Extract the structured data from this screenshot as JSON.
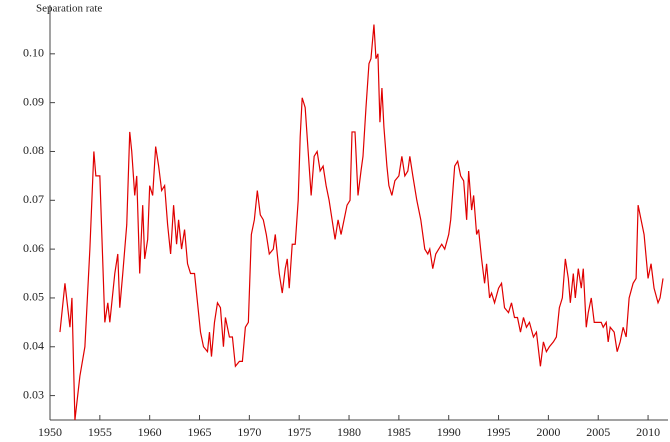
{
  "chart_data": {
    "type": "line",
    "y_label": "Separation rate",
    "xlim": [
      1950,
      2012
    ],
    "ylim": [
      0.025,
      0.11
    ],
    "xticks": [
      1950,
      1955,
      1960,
      1965,
      1970,
      1975,
      1980,
      1985,
      1990,
      1995,
      2000,
      2005,
      2010
    ],
    "yticks": [
      0.03,
      0.04,
      0.05,
      0.06,
      0.07,
      0.08,
      0.09,
      {
        "value": 0.1,
        "label": "0.10"
      }
    ],
    "grid": false,
    "series": [
      {
        "color": "#e00000",
        "x": [
          1951,
          1951.5,
          1952,
          1952.2,
          1952.5,
          1953,
          1953.5,
          1954,
          1954.4,
          1954.6,
          1955,
          1955.5,
          1955.8,
          1956,
          1956.5,
          1956.8,
          1957,
          1957.3,
          1957.7,
          1958,
          1958.2,
          1958.5,
          1958.7,
          1959,
          1959.3,
          1959.5,
          1959.8,
          1960,
          1960.3,
          1960.6,
          1960.9,
          1961.2,
          1961.5,
          1961.8,
          1962.1,
          1962.4,
          1962.7,
          1962.9,
          1963.2,
          1963.5,
          1963.8,
          1964.1,
          1964.5,
          1964.8,
          1965.1,
          1965.4,
          1965.8,
          1966,
          1966.2,
          1966.5,
          1966.8,
          1967.1,
          1967.4,
          1967.6,
          1968,
          1968.3,
          1968.6,
          1969,
          1969.3,
          1969.6,
          1969.9,
          1970.2,
          1970.5,
          1970.8,
          1971.1,
          1971.4,
          1971.7,
          1972,
          1972.4,
          1972.6,
          1973,
          1973.3,
          1973.6,
          1973.8,
          1974,
          1974.3,
          1974.6,
          1974.9,
          1975.1,
          1975.3,
          1975.6,
          1975.9,
          1976.2,
          1976.5,
          1976.8,
          1977.1,
          1977.4,
          1977.7,
          1978,
          1978.3,
          1978.6,
          1978.9,
          1979.2,
          1979.5,
          1979.8,
          1980.1,
          1980.3,
          1980.6,
          1980.9,
          1981.2,
          1981.4,
          1981.7,
          1982,
          1982.2,
          1982.5,
          1982.7,
          1982.9,
          1983.1,
          1983.3,
          1983.5,
          1983.8,
          1984,
          1984.3,
          1984.6,
          1985,
          1985.3,
          1985.6,
          1985.9,
          1986.1,
          1986.4,
          1986.8,
          1987.2,
          1987.6,
          1987.9,
          1988.1,
          1988.4,
          1988.7,
          1989,
          1989.3,
          1989.6,
          1990,
          1990.2,
          1990.6,
          1990.9,
          1991.2,
          1991.5,
          1991.8,
          1992,
          1992.3,
          1992.5,
          1992.8,
          1993,
          1993.3,
          1993.6,
          1993.8,
          1994.1,
          1994.3,
          1994.6,
          1995,
          1995.3,
          1995.6,
          1996,
          1996.3,
          1996.6,
          1996.9,
          1997.2,
          1997.5,
          1997.8,
          1998.1,
          1998.5,
          1998.8,
          1999.2,
          1999.5,
          1999.8,
          2000.1,
          2000.5,
          2000.8,
          2001.1,
          2001.4,
          2001.7,
          2002,
          2002.2,
          2002.5,
          2002.7,
          2003,
          2003.3,
          2003.5,
          2003.8,
          2004,
          2004.3,
          2004.6,
          2005,
          2005.3,
          2005.5,
          2005.8,
          2006,
          2006.2,
          2006.6,
          2006.9,
          2007.2,
          2007.5,
          2007.8,
          2008.1,
          2008.5,
          2008.8,
          2009,
          2009.3,
          2009.6,
          2010,
          2010.3,
          2010.6,
          2011,
          2011.2,
          2011.5
        ],
        "values": [
          0.043,
          0.053,
          0.044,
          0.05,
          0.025,
          0.034,
          0.04,
          0.06,
          0.08,
          0.075,
          0.075,
          0.045,
          0.049,
          0.045,
          0.055,
          0.059,
          0.048,
          0.055,
          0.065,
          0.084,
          0.08,
          0.071,
          0.075,
          0.055,
          0.069,
          0.058,
          0.062,
          0.073,
          0.071,
          0.081,
          0.077,
          0.072,
          0.073,
          0.065,
          0.059,
          0.069,
          0.061,
          0.066,
          0.06,
          0.064,
          0.057,
          0.055,
          0.055,
          0.049,
          0.043,
          0.04,
          0.039,
          0.043,
          0.038,
          0.045,
          0.049,
          0.048,
          0.04,
          0.046,
          0.042,
          0.042,
          0.036,
          0.037,
          0.037,
          0.044,
          0.045,
          0.063,
          0.066,
          0.072,
          0.067,
          0.066,
          0.063,
          0.059,
          0.06,
          0.063,
          0.055,
          0.051,
          0.056,
          0.058,
          0.052,
          0.061,
          0.061,
          0.07,
          0.083,
          0.091,
          0.089,
          0.08,
          0.071,
          0.079,
          0.08,
          0.076,
          0.077,
          0.073,
          0.07,
          0.066,
          0.062,
          0.066,
          0.063,
          0.066,
          0.069,
          0.07,
          0.084,
          0.084,
          0.071,
          0.076,
          0.079,
          0.089,
          0.098,
          0.099,
          0.106,
          0.099,
          0.1,
          0.086,
          0.093,
          0.085,
          0.077,
          0.073,
          0.071,
          0.074,
          0.075,
          0.079,
          0.075,
          0.076,
          0.079,
          0.075,
          0.07,
          0.066,
          0.06,
          0.059,
          0.06,
          0.056,
          0.059,
          0.06,
          0.061,
          0.06,
          0.063,
          0.066,
          0.077,
          0.078,
          0.075,
          0.074,
          0.066,
          0.076,
          0.068,
          0.071,
          0.063,
          0.064,
          0.058,
          0.053,
          0.057,
          0.05,
          0.051,
          0.049,
          0.052,
          0.053,
          0.048,
          0.047,
          0.049,
          0.046,
          0.046,
          0.043,
          0.046,
          0.044,
          0.045,
          0.042,
          0.043,
          0.036,
          0.041,
          0.039,
          0.04,
          0.041,
          0.042,
          0.048,
          0.05,
          0.058,
          0.054,
          0.049,
          0.055,
          0.05,
          0.056,
          0.052,
          0.056,
          0.044,
          0.047,
          0.05,
          0.045,
          0.045,
          0.045,
          0.044,
          0.045,
          0.041,
          0.044,
          0.043,
          0.039,
          0.041,
          0.044,
          0.042,
          0.05,
          0.053,
          0.054,
          0.069,
          0.066,
          0.063,
          0.054,
          0.057,
          0.052,
          0.049,
          0.05,
          0.054
        ]
      }
    ]
  }
}
